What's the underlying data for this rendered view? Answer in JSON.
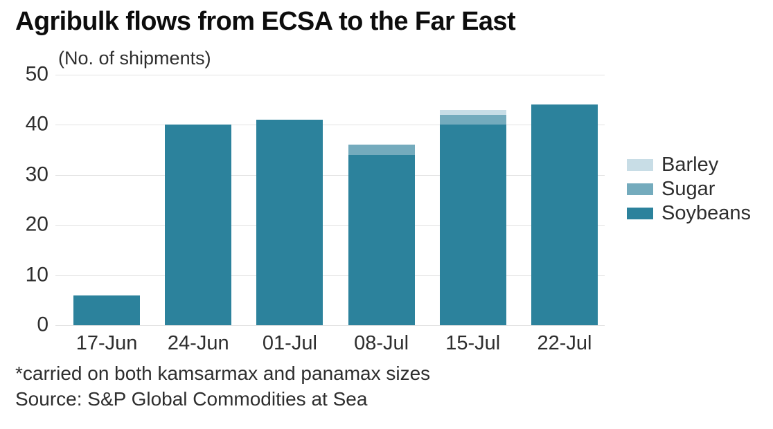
{
  "header": {
    "title": "Agribulk flows from ECSA to the Far East",
    "subtitle": "(No. of shipments)"
  },
  "chart_data": {
    "type": "bar",
    "stacked": true,
    "title": "Agribulk flows from ECSA to the Far East",
    "ylabel": "(No. of shipments)",
    "xlabel": "",
    "categories": [
      "17-Jun",
      "24-Jun",
      "01-Jul",
      "08-Jul",
      "15-Jul",
      "22-Jul"
    ],
    "series": [
      {
        "name": "Soybeans",
        "color": "#2c829c",
        "values": [
          6,
          40,
          41,
          34,
          40,
          44
        ]
      },
      {
        "name": "Sugar",
        "color": "#74abbd",
        "values": [
          0,
          0,
          0,
          2,
          2,
          0
        ]
      },
      {
        "name": "Barley",
        "color": "#c8dde6",
        "values": [
          0,
          0,
          0,
          0,
          1,
          0
        ]
      }
    ],
    "totals": [
      6,
      40,
      41,
      36,
      43,
      44
    ],
    "legend_order": [
      "Barley",
      "Sugar",
      "Soybeans"
    ],
    "legend_position": "right",
    "ylim": [
      0,
      50
    ],
    "yticks": [
      0,
      10,
      20,
      30,
      40,
      50
    ],
    "grid": true
  },
  "footer": {
    "footnote": "*carried on both kamsarmax and panamax sizes",
    "source": "Source: S&P Global Commodities at Sea"
  },
  "colors": {
    "gridline": "#e2e2e2",
    "text": "#2e2e2e",
    "title": "#0d0d0d"
  }
}
